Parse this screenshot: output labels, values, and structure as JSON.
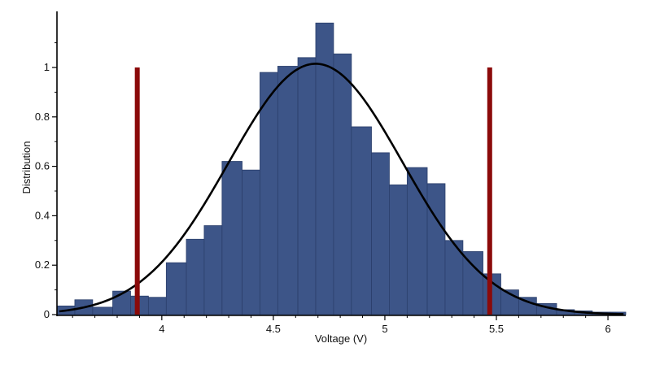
{
  "chart_data": {
    "type": "bar",
    "title": "",
    "xlabel": "Voltage (V)",
    "ylabel": "Distribution",
    "xlim": [
      3.53,
      6.08
    ],
    "ylim": [
      0,
      1.18
    ],
    "grid": false,
    "legend": "none",
    "x_ticks": [
      {
        "value": 4,
        "label": "4"
      },
      {
        "value": 4.5,
        "label": "4.5"
      },
      {
        "value": 5,
        "label": "5"
      },
      {
        "value": 5.5,
        "label": "5.5"
      },
      {
        "value": 6,
        "label": "6"
      }
    ],
    "y_ticks": [
      {
        "value": 0,
        "label": "0"
      },
      {
        "value": 0.2,
        "label": "0.2"
      },
      {
        "value": 0.4,
        "label": "0.4"
      },
      {
        "value": 0.6,
        "label": "0.6"
      },
      {
        "value": 0.8,
        "label": "0.8"
      },
      {
        "value": 1,
        "label": "1"
      }
    ],
    "histogram": {
      "bin_edges": [
        3.53,
        3.61,
        3.69,
        3.78,
        3.86,
        3.94,
        4.02,
        4.11,
        4.19,
        4.27,
        4.36,
        4.44,
        4.52,
        4.61,
        4.69,
        4.77,
        4.85,
        4.94,
        5.02,
        5.1,
        5.19,
        5.27,
        5.35,
        5.44,
        5.52,
        5.6,
        5.68,
        5.77,
        5.85,
        5.93,
        6.01,
        6.08
      ],
      "values": [
        0.035,
        0.06,
        0.03,
        0.095,
        0.075,
        0.07,
        0.21,
        0.305,
        0.36,
        0.62,
        0.585,
        0.98,
        1.005,
        1.04,
        1.18,
        1.055,
        0.76,
        0.655,
        0.525,
        0.595,
        0.53,
        0.3,
        0.255,
        0.165,
        0.1,
        0.07,
        0.045,
        0.02,
        0.015,
        0.01,
        0.01
      ],
      "fill_color": "#3d5588",
      "edge_color": "#2b3f6b"
    },
    "normal_fit": {
      "mean": 4.69,
      "std": 0.39,
      "peak": 1.015,
      "color": "#000000"
    },
    "limit_lines": {
      "x": [
        3.89,
        5.47
      ],
      "height": 1.0,
      "color": "#8b0a0a"
    }
  }
}
